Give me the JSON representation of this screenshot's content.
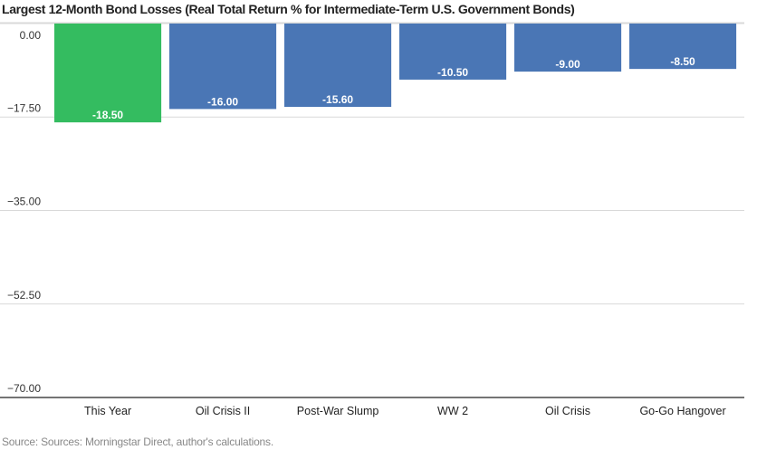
{
  "chart_data": {
    "type": "bar",
    "title": "Largest 12-Month Bond Losses (Real Total Return % for Intermediate-Term U.S. Government Bonds)",
    "categories": [
      "This Year",
      "Oil Crisis II",
      "Post-War Slump",
      "WW 2",
      "Oil Crisis",
      "Go-Go Hangover"
    ],
    "values": [
      -18.5,
      -16.0,
      -15.6,
      -10.5,
      -9.0,
      -8.5
    ],
    "value_labels": [
      "-18.50",
      "-16.00",
      "-15.60",
      "-10.50",
      "-9.00",
      "-8.50"
    ],
    "highlight_index": 0,
    "ylim": [
      -70,
      0
    ],
    "yticks": [
      0,
      -17.5,
      -35,
      -52.5,
      -70
    ],
    "ytick_labels": [
      "0.00",
      "−17.50",
      "−35.00",
      "−52.50",
      "−70.00"
    ],
    "xlabel": "",
    "ylabel": "",
    "grid": true,
    "legend": "none",
    "colors": {
      "bar": "#4a76b5",
      "highlight": "#34bc60",
      "grid": "#d9d9d9",
      "axis": "#222222"
    },
    "source": "Source: Sources: Morningstar Direct, author's calculations."
  }
}
